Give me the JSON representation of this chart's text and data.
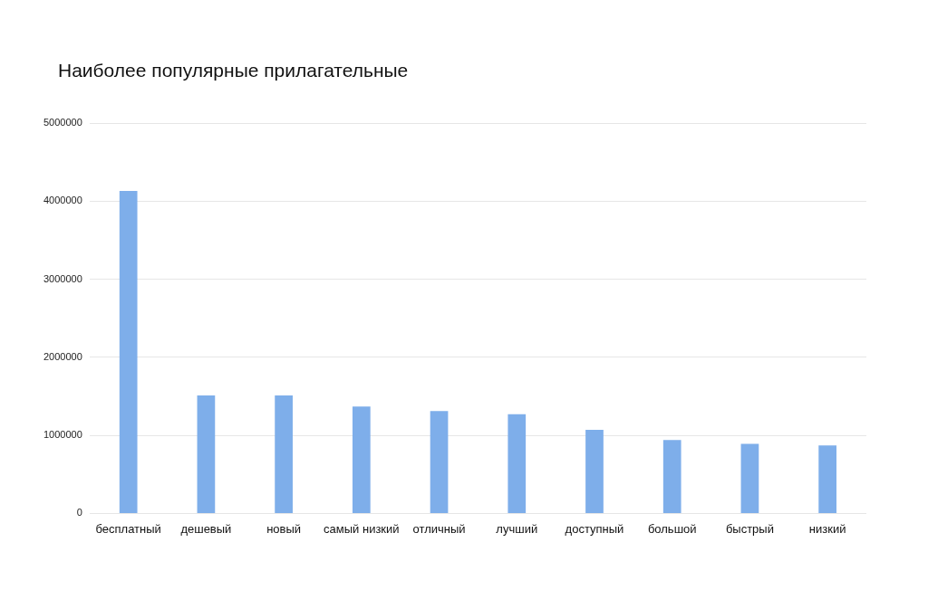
{
  "chart_data": {
    "type": "bar",
    "title": "Наиболее популярные прилагательные",
    "categories": [
      "бесплатный",
      "дешевый",
      "новый",
      "самый низкий",
      "отличный",
      "лучший",
      "доступный",
      "большой",
      "быстрый",
      "низкий"
    ],
    "values": [
      4130000,
      1510000,
      1510000,
      1370000,
      1310000,
      1270000,
      1070000,
      940000,
      890000,
      870000
    ],
    "color": "#7eaeea",
    "ylim": [
      0,
      5000000
    ],
    "yticks": [
      0,
      1000000,
      2000000,
      3000000,
      4000000,
      5000000
    ],
    "grid": "y",
    "legend": false
  }
}
